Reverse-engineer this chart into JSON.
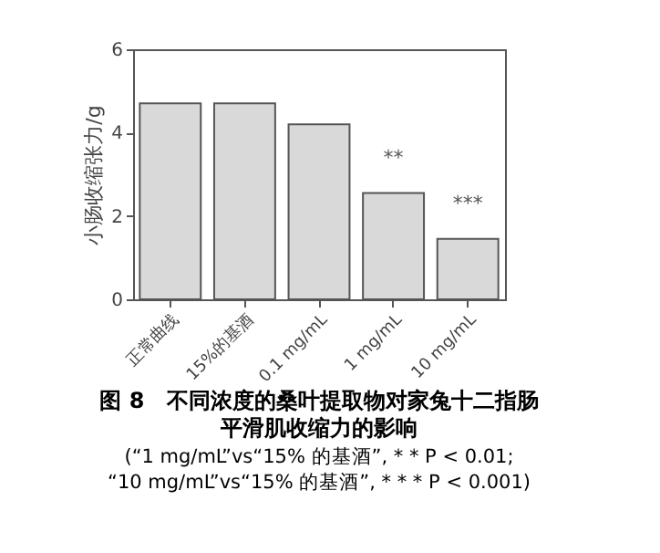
{
  "chart_data": {
    "type": "bar",
    "title": "图 8　不同浓度的桑叶提取物对家兔十二指肠平滑肌收缩力的影响",
    "subtitle": "(“1 mg/mL”vs“15% 的基酒”, * * P < 0.01;\n“10 mg/mL”vs“15% 的基酒”, * * * P < 0.001)",
    "ylabel": "小肠收缩张力/g",
    "categories": [
      "正常曲线",
      "15%的基酒",
      "0.1 mg/mL",
      "1 mg/mL",
      "10 mg/mL"
    ],
    "values": [
      4.7,
      4.7,
      4.2,
      2.55,
      1.45
    ],
    "color": "#d9d9d9",
    "ylim": [
      0,
      6
    ],
    "yticks": [
      0,
      2,
      4,
      6
    ],
    "grid": false,
    "annotations": [
      "**",
      "***"
    ]
  }
}
